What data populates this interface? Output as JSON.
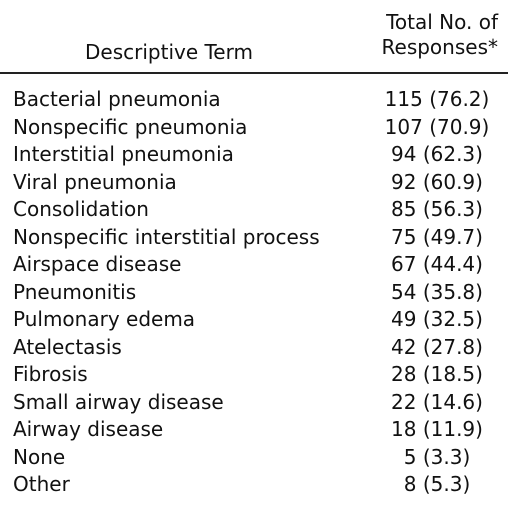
{
  "table": {
    "headers": {
      "term": "Descriptive Term",
      "responses_line1": "Total No. of",
      "responses_line2": "Responses*"
    },
    "rows": [
      {
        "term": "Bacterial pneumonia",
        "responses": "115 (76.2)"
      },
      {
        "term": "Nonspecific pneumonia",
        "responses": "107 (70.9)"
      },
      {
        "term": "Interstitial pneumonia",
        "responses": "94 (62.3)"
      },
      {
        "term": "Viral pneumonia",
        "responses": "92 (60.9)"
      },
      {
        "term": "Consolidation",
        "responses": "85 (56.3)"
      },
      {
        "term": "Nonspecific interstitial process",
        "responses": "75 (49.7)"
      },
      {
        "term": "Airspace disease",
        "responses": "67 (44.4)"
      },
      {
        "term": "Pneumonitis",
        "responses": "54 (35.8)"
      },
      {
        "term": "Pulmonary edema",
        "responses": "49 (32.5)"
      },
      {
        "term": "Atelectasis",
        "responses": "42 (27.8)"
      },
      {
        "term": "Fibrosis",
        "responses": "28 (18.5)"
      },
      {
        "term": "Small airway disease",
        "responses": "22 (14.6)"
      },
      {
        "term": "Airway disease",
        "responses": "18 (11.9)"
      },
      {
        "term": "None",
        "responses": "5 (3.3)"
      },
      {
        "term": "Other",
        "responses": "8 (5.3)"
      }
    ]
  }
}
